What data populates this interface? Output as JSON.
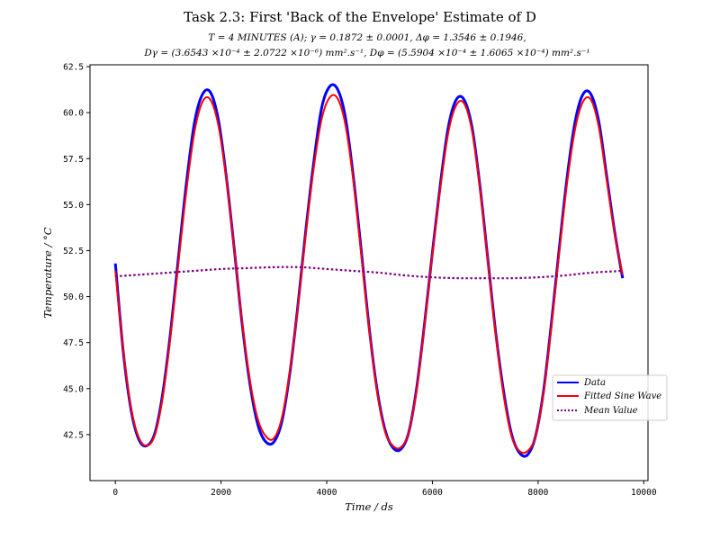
{
  "chart_data": {
    "type": "line",
    "title": "Task 2.3: First 'Back of the Envelope' Estimate of D",
    "subtitle_line1": "T = 4 MINUTES (A); γ = 0.1872 ± 0.0001, Δφ = 1.3546 ± 0.1946,",
    "subtitle_line2": "Dγ = (3.6543 ×10⁻⁴ ± 2.0722 ×10⁻⁶) mm².s⁻¹, Dφ = (5.5904 ×10⁻⁴ ± 1.6065 ×10⁻⁴) mm².s⁻¹",
    "xlabel": "Time / ds",
    "ylabel": "Temperature / °C",
    "xlim": [
      -480,
      10080
    ],
    "ylim": [
      40.0,
      62.6
    ],
    "xticks": [
      0,
      2000,
      4000,
      6000,
      8000,
      10000
    ],
    "xtick_labels": [
      "0",
      "2000",
      "4000",
      "6000",
      "8000",
      "10000"
    ],
    "yticks": [
      42.5,
      45.0,
      47.5,
      50.0,
      52.5,
      55.0,
      57.5,
      60.0,
      62.5
    ],
    "ytick_labels": [
      "42.5",
      "45.0",
      "47.5",
      "50.0",
      "52.5",
      "55.0",
      "57.5",
      "60.0",
      "62.5"
    ],
    "grid": false,
    "legend_position": "center-right",
    "series": [
      {
        "name": "Data",
        "color": "#0000ff",
        "style": "solid-noisy",
        "x": [
          0,
          150,
          300,
          450,
          600,
          750,
          900,
          1050,
          1200,
          1350,
          1500,
          1650,
          1800,
          1950,
          2100,
          2250,
          2400,
          2550,
          2700,
          2850,
          3000,
          3150,
          3300,
          3450,
          3600,
          3750,
          3900,
          4050,
          4200,
          4350,
          4500,
          4650,
          4800,
          4950,
          5100,
          5250,
          5400,
          5550,
          5700,
          5850,
          6000,
          6150,
          6300,
          6450,
          6600,
          6750,
          6900,
          7050,
          7200,
          7350,
          7500,
          7650,
          7800,
          7950,
          8100,
          8250,
          8400,
          8550,
          8700,
          8850,
          9000,
          9150,
          9300,
          9450,
          9600
        ],
        "y": [
          51.8,
          47.0,
          43.8,
          42.2,
          41.9,
          42.6,
          44.8,
          48.2,
          52.3,
          56.3,
          59.5,
          61.0,
          61.1,
          59.6,
          56.5,
          52.6,
          48.5,
          45.2,
          43.0,
          42.1,
          42.1,
          43.2,
          45.8,
          49.4,
          53.5,
          57.2,
          60.2,
          61.4,
          61.3,
          59.8,
          56.6,
          52.6,
          48.4,
          45.0,
          42.8,
          41.8,
          41.7,
          42.6,
          45.0,
          48.5,
          52.4,
          56.1,
          59.2,
          60.7,
          60.7,
          59.2,
          56.0,
          52.0,
          48.0,
          44.8,
          42.5,
          41.5,
          41.4,
          42.4,
          44.8,
          48.5,
          52.6,
          56.5,
          59.5,
          61.0,
          61.0,
          59.5,
          56.5,
          53.5,
          51.0
        ]
      },
      {
        "name": "Fitted Sine Wave",
        "color": "#ff0000",
        "style": "solid",
        "x": [
          0,
          150,
          300,
          450,
          600,
          750,
          900,
          1050,
          1200,
          1350,
          1500,
          1650,
          1800,
          1950,
          2100,
          2250,
          2400,
          2550,
          2700,
          2850,
          3000,
          3150,
          3300,
          3450,
          3600,
          3750,
          3900,
          4050,
          4200,
          4350,
          4500,
          4650,
          4800,
          4950,
          5100,
          5250,
          5400,
          5550,
          5700,
          5850,
          6000,
          6150,
          6300,
          6450,
          6600,
          6750,
          6900,
          7050,
          7200,
          7350,
          7500,
          7650,
          7800,
          7950,
          8100,
          8250,
          8400,
          8550,
          8700,
          8850,
          9000,
          9150,
          9300,
          9450,
          9600
        ],
        "y": [
          51.4,
          47.1,
          43.9,
          42.3,
          41.9,
          42.5,
          44.6,
          48.0,
          52.0,
          55.9,
          59.0,
          60.6,
          60.7,
          59.3,
          56.4,
          52.6,
          48.6,
          45.4,
          43.3,
          42.4,
          42.3,
          43.4,
          45.9,
          49.3,
          53.3,
          56.9,
          59.6,
          60.8,
          60.8,
          59.4,
          56.4,
          52.4,
          48.3,
          44.9,
          42.7,
          41.9,
          41.8,
          42.6,
          44.9,
          48.4,
          52.3,
          55.9,
          58.9,
          60.4,
          60.5,
          59.0,
          55.9,
          51.9,
          47.9,
          44.6,
          42.4,
          41.6,
          41.6,
          42.4,
          44.7,
          48.3,
          52.4,
          56.2,
          59.1,
          60.6,
          60.7,
          59.2,
          56.3,
          53.4,
          51.2
        ]
      },
      {
        "name": "Mean Value",
        "color": "#800080",
        "style": "dotted",
        "x": [
          0,
          500,
          1000,
          1500,
          2000,
          2500,
          3000,
          3500,
          4000,
          4500,
          5000,
          5500,
          6000,
          6500,
          7000,
          7500,
          8000,
          8500,
          9000,
          9600
        ],
        "y": [
          51.1,
          51.2,
          51.3,
          51.4,
          51.5,
          51.55,
          51.6,
          51.6,
          51.5,
          51.4,
          51.3,
          51.15,
          51.05,
          51.0,
          51.0,
          51.0,
          51.05,
          51.15,
          51.3,
          51.4
        ]
      }
    ]
  }
}
